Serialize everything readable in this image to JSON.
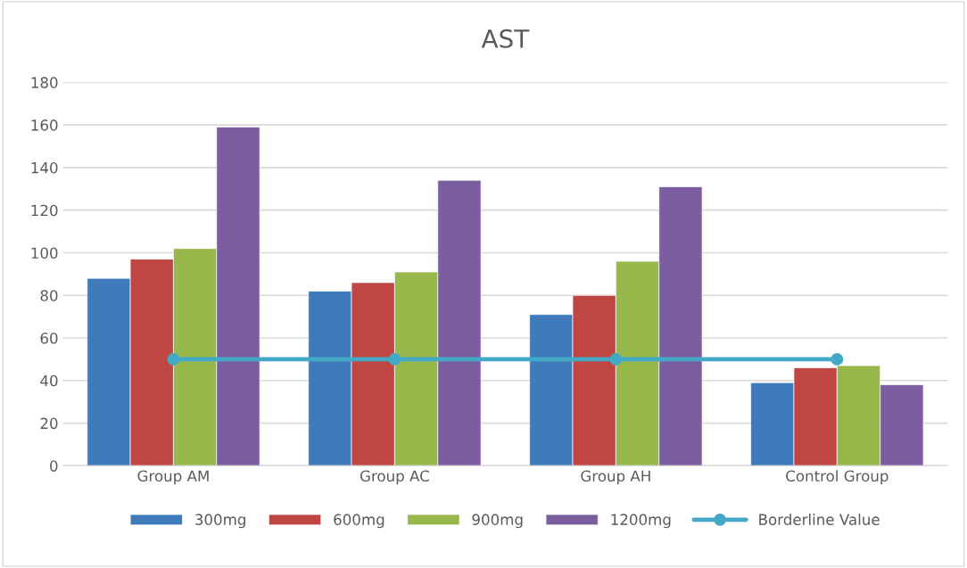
{
  "chart_data": {
    "type": "bar",
    "title": "AST",
    "categories": [
      "Group AM",
      "Group AC",
      "Group AH",
      "Control Group"
    ],
    "series": [
      {
        "name": "300mg",
        "color": "#3f7bbb",
        "values": [
          88,
          82,
          71,
          39
        ]
      },
      {
        "name": "600mg",
        "color": "#c04643",
        "values": [
          97,
          86,
          80,
          46
        ]
      },
      {
        "name": "900mg",
        "color": "#98b84c",
        "values": [
          102,
          91,
          96,
          47
        ]
      },
      {
        "name": "1200mg",
        "color": "#7b5e9f",
        "values": [
          159,
          134,
          131,
          38
        ]
      },
      {
        "name": "Borderline Value",
        "type": "line",
        "color": "#43a9c6",
        "marker": "circle",
        "values": [
          50,
          50,
          50,
          50
        ]
      }
    ],
    "ylim": [
      0,
      180
    ],
    "yticks": [
      0,
      20,
      40,
      60,
      80,
      100,
      120,
      140,
      160,
      180
    ],
    "grid": "y",
    "legend": "bottom"
  }
}
